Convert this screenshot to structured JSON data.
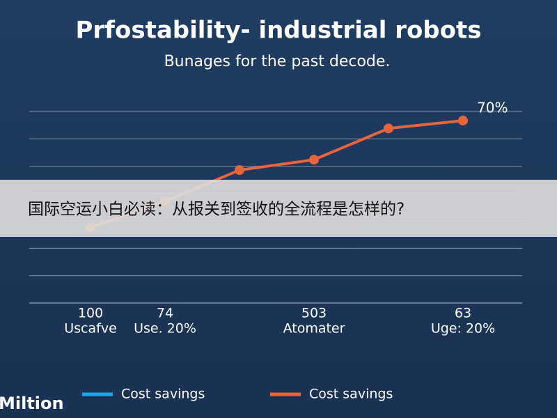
{
  "chart_data": {
    "type": "line",
    "title": "Prfostability- industrial robots",
    "subtitle": "Bunages for the past decode.",
    "annotation": "70%",
    "categories": [
      "100",
      "74",
      null,
      "503",
      null,
      "63"
    ],
    "sublabels": [
      "Uscafve",
      "Use. 20%",
      null,
      "Atomater",
      null,
      "Uge: 20%"
    ],
    "series": [
      {
        "name": "Cost savings",
        "color": "#1ea7e8",
        "values": [
          null,
          null,
          null,
          null,
          null,
          null
        ]
      },
      {
        "name": "Cost savings",
        "color": "#e8643a",
        "values": [
          29,
          39,
          51,
          55,
          67,
          70
        ]
      }
    ],
    "ylim": [
      0,
      73.5
    ],
    "yticks": [
      0,
      10.5,
      21,
      31.5,
      42,
      52.5,
      63,
      73.5
    ],
    "grid": true,
    "legend": "bottom"
  },
  "watermark": "Miltion",
  "banner": "国际空运小白必读：从报关到签收的全流程是怎样的?"
}
